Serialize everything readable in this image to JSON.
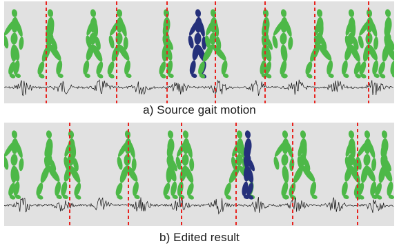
{
  "figure": {
    "panel_a": {
      "caption": "a) Source gait motion",
      "figure_color": "#4db848",
      "highlight_color": "#25307a",
      "marker_color": "#e8221e",
      "signal_color": "#111111"
    },
    "panel_b": {
      "caption": "b) Edited result",
      "figure_color": "#4db848",
      "highlight_color": "#25307a",
      "marker_color": "#e8221e",
      "signal_color": "#111111"
    }
  }
}
